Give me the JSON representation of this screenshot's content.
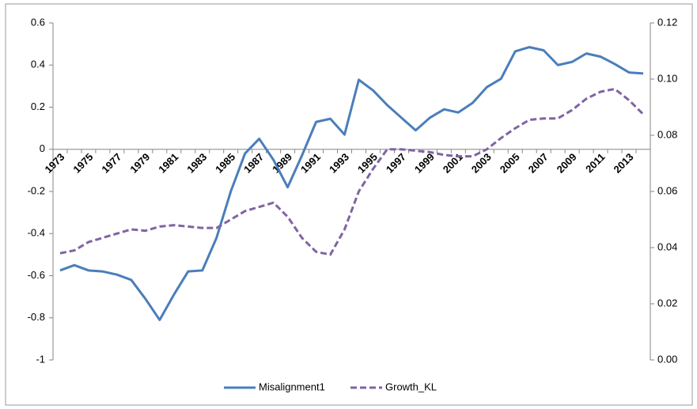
{
  "chart_data": {
    "type": "line",
    "categories": [
      "1973",
      null,
      "1975",
      null,
      "1977",
      null,
      "1979",
      null,
      "1981",
      null,
      "1983",
      null,
      "1985",
      null,
      "1987",
      null,
      "1989",
      null,
      "1991",
      null,
      "1993",
      null,
      "1995",
      null,
      "1997",
      null,
      "1999",
      null,
      "2001",
      null,
      "2003",
      null,
      "2005",
      null,
      "2007",
      null,
      "2009",
      null,
      "2011",
      null,
      "2013",
      null
    ],
    "series": [
      {
        "name": "Misalignment1",
        "color": "#4a7ebb",
        "dashed": false,
        "values": [
          -0.575,
          -0.55,
          -0.575,
          -0.58,
          -0.595,
          -0.62,
          -0.71,
          -0.81,
          -0.69,
          -0.58,
          -0.575,
          -0.42,
          -0.2,
          -0.02,
          0.05,
          -0.05,
          -0.18,
          -0.03,
          0.13,
          0.145,
          0.07,
          0.33,
          0.28,
          0.21,
          0.15,
          0.09,
          0.15,
          0.19,
          0.175,
          0.22,
          0.295,
          0.335,
          0.465,
          0.485,
          0.47,
          0.4,
          0.415,
          0.455,
          0.44,
          0.405,
          0.365,
          0.36
        ]
      },
      {
        "name": "Growth_KL",
        "color": "#8064a2",
        "dashed": true,
        "axis": "y2",
        "values": [
          0.038,
          0.039,
          0.042,
          0.0435,
          0.045,
          0.0465,
          0.046,
          0.0475,
          0.048,
          0.0475,
          0.047,
          0.047,
          0.05,
          0.053,
          0.0545,
          0.056,
          0.051,
          0.0435,
          0.0385,
          0.0375,
          0.0465,
          0.06,
          0.068,
          0.075,
          0.075,
          0.0745,
          0.074,
          0.073,
          0.0725,
          0.0725,
          0.075,
          0.079,
          0.0825,
          0.0855,
          0.086,
          0.086,
          0.089,
          0.093,
          0.0955,
          0.0965,
          0.0925,
          0.0875
        ]
      }
    ],
    "ylim": [
      -1,
      0.6
    ],
    "yticks": [
      -1,
      -0.8,
      -0.6,
      -0.4,
      -0.2,
      0,
      0.2,
      0.4,
      0.6
    ],
    "y2lim": [
      0,
      0.12
    ],
    "y2ticks": [
      {
        "value": 0,
        "label": "0.00"
      },
      {
        "value": 0.02,
        "label": "0.02"
      },
      {
        "value": 0.04,
        "label": "0.04"
      },
      {
        "value": 0.06,
        "label": "0.06"
      },
      {
        "value": 0.08,
        "label": "0.08"
      },
      {
        "value": 0.1,
        "label": "0.10"
      },
      {
        "value": 0.12,
        "label": "0.12"
      }
    ],
    "legend": "bottom"
  }
}
